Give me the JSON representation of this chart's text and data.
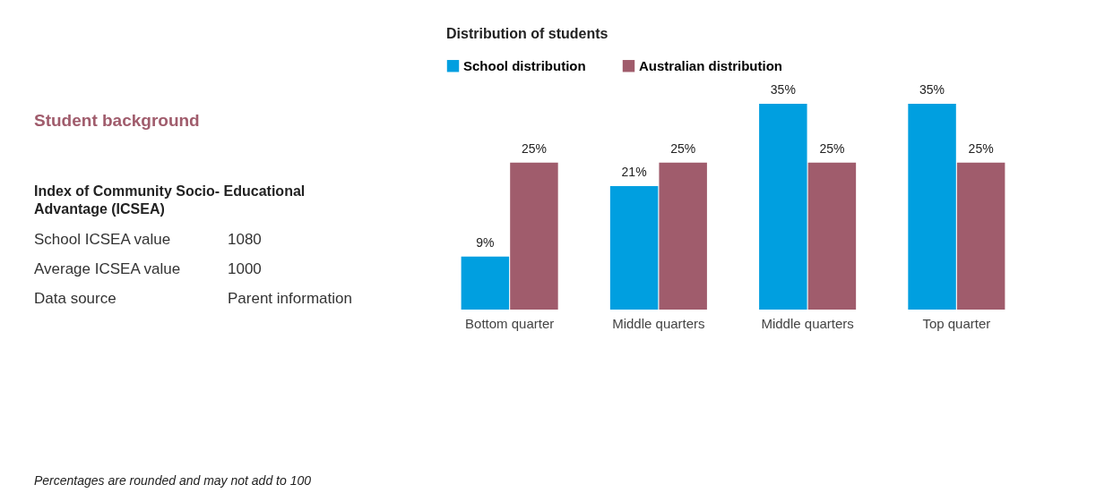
{
  "chart_data": [
    {
      "type": "other",
      "title": "Student background",
      "subtitle": "Index of Community Socio- Educational Advantage (ICSEA)",
      "annotations": [
        "School ICSEA value",
        "1080",
        "Average ICSEA value",
        "1000",
        "Data source",
        "Parent information",
        "Percentages are rounded and may not add to 100"
      ]
    },
    {
      "type": "bar",
      "title": "Distribution of students",
      "categories": [
        "Bottom quarter",
        "Middle quarters",
        "Middle quarters",
        "Top quarter"
      ],
      "series": [
        {
          "name": "School distribution",
          "color": "#009fe0",
          "values": [
            9,
            21,
            35,
            35
          ],
          "value_labels": [
            "9%",
            "21%",
            "35%",
            "35%"
          ]
        },
        {
          "name": "Australian distribution",
          "color": "#a05c6c",
          "values": [
            25,
            25,
            25,
            25
          ],
          "value_labels": [
            "25%",
            "25%",
            "25%",
            "25%"
          ]
        }
      ],
      "legend": "top",
      "grid": false
    }
  ]
}
